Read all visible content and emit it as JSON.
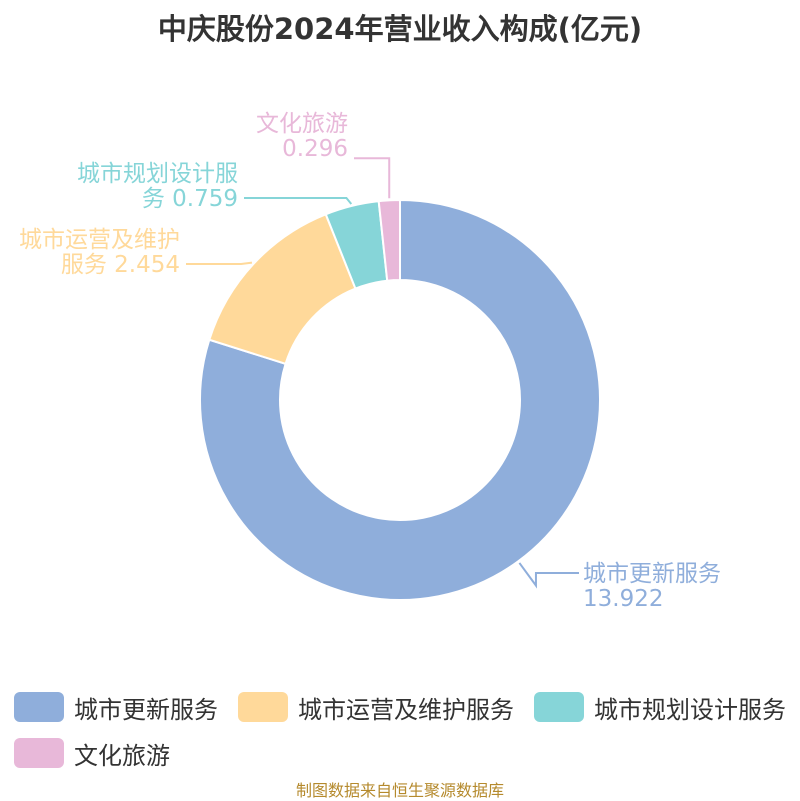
{
  "title": "中庆股份2024年营业收入构成(亿元)",
  "source": "制图数据来自恒生聚源数据库",
  "chart_data": {
    "type": "pie",
    "variant": "donut",
    "title": "中庆股份2024年营业收入构成(亿元)",
    "slices": [
      {
        "name": "城市更新服务",
        "value": 13.922,
        "color": "#8FAEDB",
        "label_lines": [
          "城市更新服务",
          "13.922"
        ]
      },
      {
        "name": "城市运营及维护服务",
        "value": 2.454,
        "color": "#FFD99A",
        "label_lines": [
          "城市运营及维护",
          "服务 2.454"
        ]
      },
      {
        "name": "城市规划设计服务",
        "value": 0.759,
        "color": "#86D5D8",
        "label_lines": [
          "城市规划设计服",
          "务 0.759"
        ]
      },
      {
        "name": "文化旅游",
        "value": 0.296,
        "color": "#E8B8D9",
        "label_lines": [
          "文化旅游",
          "0.296"
        ]
      }
    ],
    "legend_position": "bottom"
  }
}
